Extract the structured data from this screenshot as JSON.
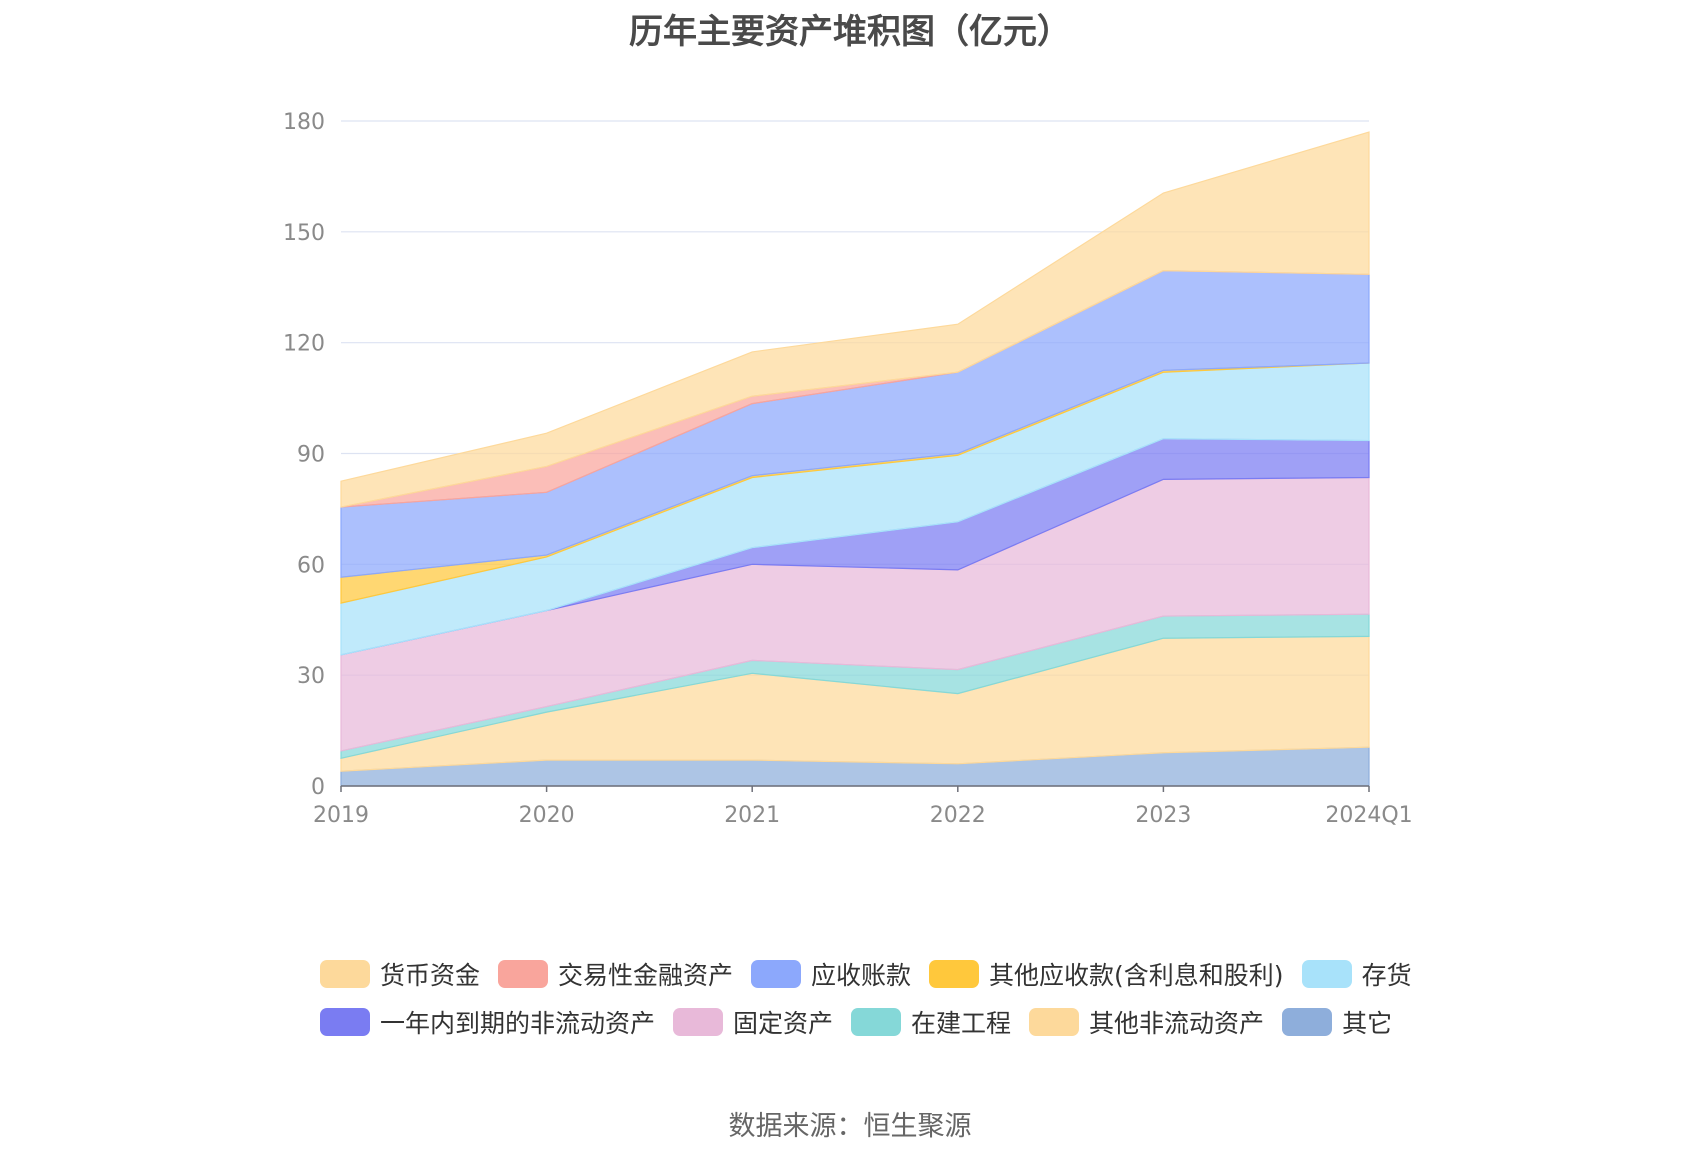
{
  "chart_data": {
    "type": "area",
    "stacked": true,
    "title": "历年主要资产堆积图（亿元）",
    "source": "数据来源：恒生聚源",
    "categories": [
      "2019",
      "2020",
      "2021",
      "2022",
      "2023",
      "2024Q1"
    ],
    "ylim": [
      0,
      180
    ],
    "yticks": [
      0,
      30,
      60,
      90,
      120,
      150,
      180
    ],
    "grid": true,
    "legend_position": "bottom",
    "series": [
      {
        "name": "其它",
        "color": "#8eaedb",
        "values": [
          4.0,
          7.0,
          7.0,
          6.0,
          9.0,
          10.5
        ]
      },
      {
        "name": "其他非流动资产",
        "color": "#fdd99b",
        "values": [
          3.5,
          13.0,
          23.5,
          19.0,
          31.0,
          30.0
        ]
      },
      {
        "name": "在建工程",
        "color": "#85d8d8",
        "values": [
          2.0,
          1.5,
          3.5,
          6.5,
          6.0,
          6.0
        ]
      },
      {
        "name": "固定资产",
        "color": "#e8b9d9",
        "values": [
          26.0,
          26.0,
          26.0,
          27.0,
          37.0,
          37.0
        ]
      },
      {
        "name": "一年内到期的非流动资产",
        "color": "#7a7cf2",
        "values": [
          0.0,
          0.0,
          4.5,
          13.0,
          11.0,
          10.0
        ]
      },
      {
        "name": "存货",
        "color": "#a8e2fa",
        "values": [
          14.0,
          14.5,
          19.0,
          18.0,
          18.0,
          21.0
        ]
      },
      {
        "name": "其他应收款(含利息和股利)",
        "color": "#ffc83c",
        "values": [
          7.0,
          0.5,
          0.5,
          0.5,
          0.5,
          0.0
        ]
      },
      {
        "name": "应收账款",
        "color": "#8ca8fc",
        "values": [
          19.0,
          17.0,
          19.5,
          22.0,
          27.0,
          24.0
        ]
      },
      {
        "name": "交易性金融资产",
        "color": "#f9a59c",
        "values": [
          0.0,
          7.0,
          2.0,
          0.0,
          0.0,
          0.0
        ]
      },
      {
        "name": "货币资金",
        "color": "#fdd99b",
        "values": [
          7.0,
          9.0,
          12.0,
          13.0,
          21.0,
          38.5
        ]
      }
    ]
  },
  "legend_order": [
    "货币资金",
    "交易性金融资产",
    "应收账款",
    "其他应收款(含利息和股利)",
    "存货",
    "一年内到期的非流动资产",
    "固定资产",
    "在建工程",
    "其他非流动资产",
    "其它"
  ]
}
